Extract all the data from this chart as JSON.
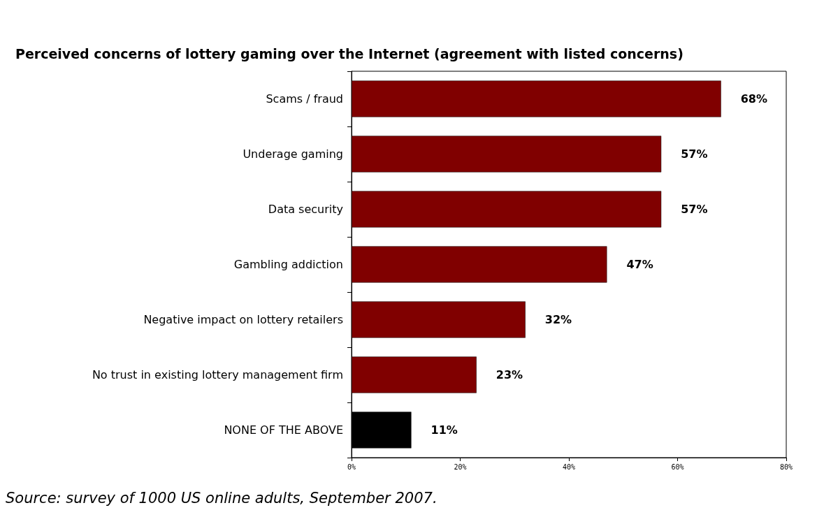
{
  "chart_data": {
    "type": "bar",
    "orientation": "horizontal",
    "title": "Perceived concerns of lottery gaming over the Internet (agreement with listed concerns)",
    "categories": [
      "Scams / fraud",
      "Underage gaming",
      "Data security",
      "Gambling addiction",
      "Negative impact on lottery retailers",
      "No trust in existing lottery management firm",
      "NONE OF THE ABOVE"
    ],
    "values": [
      68,
      57,
      57,
      47,
      32,
      23,
      11
    ],
    "value_labels": [
      "68%",
      "57%",
      "57%",
      "47%",
      "32%",
      "23%",
      "11%"
    ],
    "colors": [
      "#800000",
      "#800000",
      "#800000",
      "#800000",
      "#800000",
      "#800000",
      "#000000"
    ],
    "xlim": [
      0,
      80
    ],
    "xticks": [
      {
        "value": 0,
        "label": "0%"
      },
      {
        "value": 20,
        "label": "20%"
      },
      {
        "value": 40,
        "label": "40%"
      },
      {
        "value": 60,
        "label": "60%"
      },
      {
        "value": 80,
        "label": "80%"
      }
    ],
    "grid": false,
    "annotations": [
      "Source: survey of 1000 US online adults, September 2007."
    ]
  }
}
